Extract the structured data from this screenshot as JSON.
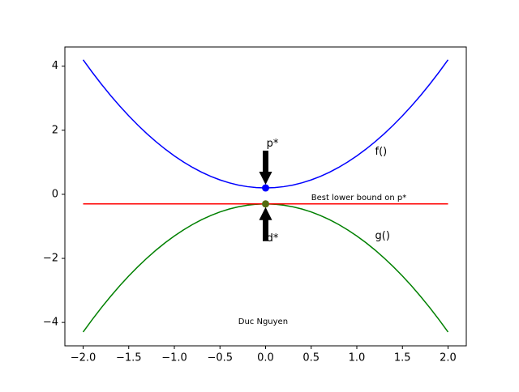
{
  "chart_data": {
    "type": "line",
    "xlim": [
      -2.2,
      2.2
    ],
    "ylim": [
      -4.73,
      4.6
    ],
    "xticks": [
      {
        "value": -2,
        "label": "−2.0"
      },
      {
        "value": -1.5,
        "label": "−1.5"
      },
      {
        "value": -1,
        "label": "−1.0"
      },
      {
        "value": -0.5,
        "label": "−0.5"
      },
      {
        "value": 0,
        "label": "0.0"
      },
      0.5,
      {
        "value": 1,
        "label": "1.0"
      },
      1.5,
      {
        "value": 2,
        "label": "2.0"
      }
    ],
    "yticks": [
      {
        "value": -4,
        "label": "−4"
      },
      {
        "value": -2,
        "label": "−2"
      },
      0,
      2,
      4
    ],
    "series": [
      {
        "color": "#0000ff",
        "x": [
          -2,
          -1.9,
          -1.8,
          -1.7,
          -1.6,
          -1.5,
          -1.4,
          -1.3,
          -1.2,
          -1.1,
          -1,
          -0.9,
          -0.8,
          -0.7,
          -0.6,
          -0.5,
          -0.4,
          -0.3,
          -0.2,
          -0.1,
          0,
          0.1,
          0.2,
          0.3,
          0.4,
          0.5,
          0.6,
          0.7,
          0.8,
          0.9,
          1,
          1.1,
          1.2,
          1.3,
          1.4,
          1.5,
          1.6,
          1.7,
          1.8,
          1.9,
          2
        ],
        "values": [
          4.2,
          3.81,
          3.44,
          3.09,
          2.76,
          2.45,
          2.16,
          1.89,
          1.64,
          1.41,
          1.2,
          1.01,
          0.84,
          0.69,
          0.56,
          0.45,
          0.36,
          0.29,
          0.24,
          0.21,
          0.2,
          0.21,
          0.24,
          0.29,
          0.36,
          0.45,
          0.56,
          0.69,
          0.84,
          1.01,
          1.2,
          1.41,
          1.64,
          1.89,
          2.16,
          2.45,
          2.76,
          3.09,
          3.44,
          3.81,
          4.2
        ]
      },
      {
        "color": "#008000",
        "x": [
          -2,
          -1.9,
          -1.8,
          -1.7,
          -1.6,
          -1.5,
          -1.4,
          -1.3,
          -1.2,
          -1.1,
          -1,
          -0.9,
          -0.8,
          -0.7,
          -0.6,
          -0.5,
          -0.4,
          -0.3,
          -0.2,
          -0.1,
          0,
          0.1,
          0.2,
          0.3,
          0.4,
          0.5,
          0.6,
          0.7,
          0.8,
          0.9,
          1,
          1.1,
          1.2,
          1.3,
          1.4,
          1.5,
          1.6,
          1.7,
          1.8,
          1.9,
          2
        ],
        "values": [
          -4.3,
          -3.91,
          -3.54,
          -3.19,
          -2.86,
          -2.55,
          -2.26,
          -1.99,
          -1.74,
          -1.51,
          -1.3,
          -1.11,
          -0.94,
          -0.79,
          -0.66,
          -0.55,
          -0.46,
          -0.39,
          -0.34,
          -0.31,
          -0.3,
          -0.31,
          -0.34,
          -0.39,
          -0.46,
          -0.55,
          -0.66,
          -0.79,
          -0.94,
          -1.11,
          -1.3,
          -1.51,
          -1.74,
          -1.99,
          -2.26,
          -2.55,
          -2.86,
          -3.19,
          -3.54,
          -3.91,
          -4.3
        ]
      },
      {
        "color": "#ff0000",
        "x": [
          -2,
          2
        ],
        "values": [
          -0.3,
          -0.3
        ]
      }
    ],
    "points": [
      {
        "x": 0,
        "y": 0.2,
        "color": "#0000ff"
      },
      {
        "x": 0,
        "y": -0.3,
        "color": "#556b10"
      }
    ],
    "annotations": [
      "p*",
      "d*",
      "f()",
      "g()",
      "Best lower bound on p*",
      "Duc Nguyen"
    ]
  }
}
